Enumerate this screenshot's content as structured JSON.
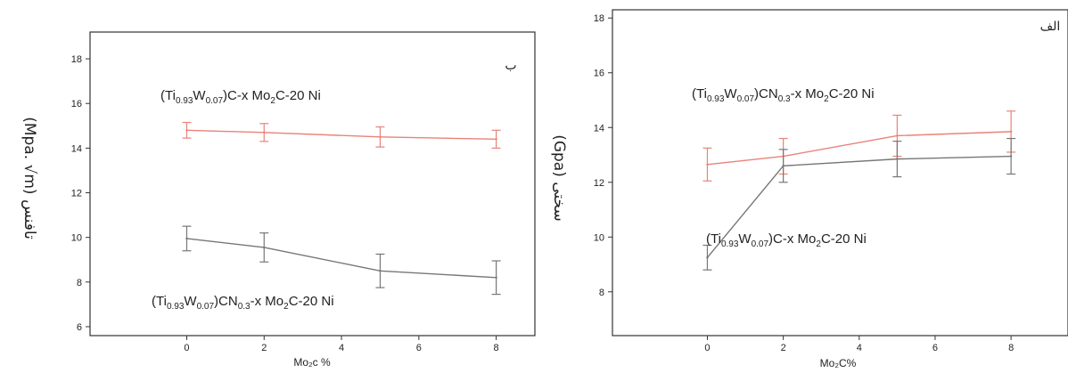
{
  "chart_data": [
    {
      "type": "line",
      "panel_label": "ب",
      "xlabel": "Mo₂c %",
      "ylabel": "(Mpa. √m) تافنس",
      "x": [
        0,
        2,
        5,
        8
      ],
      "xlim": [
        -2.5,
        9
      ],
      "ylim": [
        5.6,
        19.2
      ],
      "xticks": [
        0,
        2,
        4,
        6,
        8
      ],
      "yticks": [
        6,
        8,
        10,
        12,
        14,
        16,
        18
      ],
      "series": [
        {
          "color": "#e8837a",
          "values": [
            14.8,
            14.7,
            14.5,
            14.4
          ],
          "errors": [
            0.35,
            0.4,
            0.45,
            0.4
          ],
          "annotation": {
            "parts": [
              "(Ti",
              "0.93",
              "W",
              "0.07",
              ")C-x Mo",
              "2",
              "C-20 Ni"
            ]
          }
        },
        {
          "color": "#777777",
          "values": [
            9.95,
            9.55,
            8.5,
            8.2
          ],
          "errors": [
            0.55,
            0.65,
            0.75,
            0.75
          ],
          "annotation": {
            "parts": [
              "(Ti",
              "0.93",
              "W",
              "0.07",
              ")CN",
              "0.3",
              "-x Mo",
              "2",
              "C-20 Ni"
            ]
          }
        }
      ]
    },
    {
      "type": "line",
      "panel_label": "الف",
      "xlabel": "Mo₂C%",
      "ylabel": "(Gpa) سختی",
      "x": [
        0,
        2,
        5,
        8
      ],
      "xlim": [
        -2.5,
        9.5
      ],
      "ylim": [
        6.4,
        18.3
      ],
      "xticks": [
        0,
        2,
        4,
        6,
        8
      ],
      "yticks": [
        8,
        10,
        12,
        14,
        16,
        18
      ],
      "series": [
        {
          "color": "#e8837a",
          "values": [
            12.65,
            12.95,
            13.7,
            13.85
          ],
          "errors": [
            0.6,
            0.65,
            0.75,
            0.75
          ],
          "annotation": {
            "parts": [
              "(Ti",
              "0.93",
              "W",
              "0.07",
              ")CN",
              "0.3",
              "-x Mo",
              "2",
              "C-20 Ni"
            ]
          }
        },
        {
          "color": "#777777",
          "values": [
            9.25,
            12.6,
            12.85,
            12.95
          ],
          "errors": [
            0.45,
            0.6,
            0.65,
            0.65
          ],
          "annotation": {
            "parts": [
              "(Ti",
              "0.93",
              "W",
              "0.07",
              ")C-x Mo",
              "2",
              "C-20 Ni"
            ]
          }
        }
      ]
    }
  ]
}
